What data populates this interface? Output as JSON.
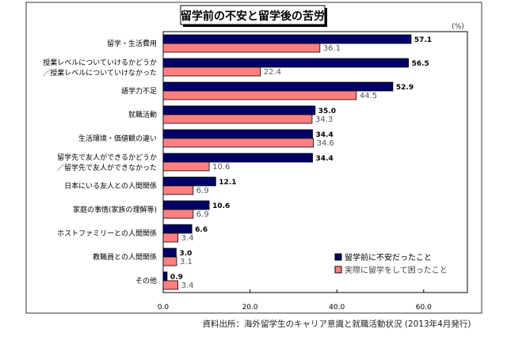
{
  "chart_data": {
    "type": "bar",
    "orientation": "horizontal",
    "title": "留学前の不安と留学後の苦労",
    "unit_label": "(%)",
    "categories": [
      [
        "留学・生活費用"
      ],
      [
        "授業レベルについていけるかどうか",
        "／授業レベルについていけなかった"
      ],
      [
        "語学力不足"
      ],
      [
        "就職活動"
      ],
      [
        "生活環境・価値観の違い"
      ],
      [
        "留学先で友人ができるかどうか",
        "／留学先で友人ができなかった"
      ],
      [
        "日本にいる友人との人間関係"
      ],
      [
        "家庭の事情(家族の理解等)"
      ],
      [
        "ホストファミリーとの人間関係"
      ],
      [
        "教職員との人間関係"
      ],
      [
        "その他"
      ]
    ],
    "series": [
      {
        "name": "留学前に不安だったこと",
        "color": "#000066",
        "values": [
          57.1,
          56.5,
          52.9,
          35.0,
          34.4,
          34.4,
          12.1,
          10.6,
          6.6,
          3.0,
          0.9
        ]
      },
      {
        "name": "実際に留学をして困ったこと",
        "color": "#ff8080",
        "values": [
          36.1,
          22.4,
          44.5,
          34.3,
          34.6,
          10.6,
          6.9,
          6.9,
          3.4,
          3.1,
          3.4
        ]
      }
    ],
    "xlim": [
      0,
      70
    ],
    "xticks": [
      "0.0",
      "20.0",
      "40.0",
      "60.0"
    ],
    "grid": false,
    "legend": "bottom-right",
    "source": "資料出所：海外留学生のキャリア意識と就職活動状況 (2013年4月発行)"
  }
}
